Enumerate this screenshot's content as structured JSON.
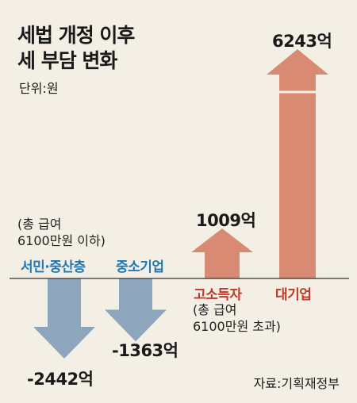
{
  "title_line1": "세법 개정 이후",
  "title_line2": "세 부담 변화",
  "unit": "단위:원",
  "source": "자료:기획재정부",
  "group_low_note": "(총 급여\n6100만원 이하)",
  "group_high_note": "(총 급여\n6100만원 초과)",
  "colors": {
    "negative": "#8ea6bd",
    "positive": "#d98a72",
    "negative_label": "#1f78b4",
    "positive_label": "#c0392b"
  },
  "chart_data": {
    "type": "bar",
    "title": "세법 개정 이후 세 부담 변화",
    "unit": "단위:원",
    "categories": [
      "서민·중산층",
      "중소기업",
      "고소득자",
      "대기업"
    ],
    "values": [
      -2442,
      -1363,
      1009,
      6243
    ],
    "value_labels": [
      "-2442억",
      "-1363억",
      "1009억",
      "6243억"
    ]
  }
}
